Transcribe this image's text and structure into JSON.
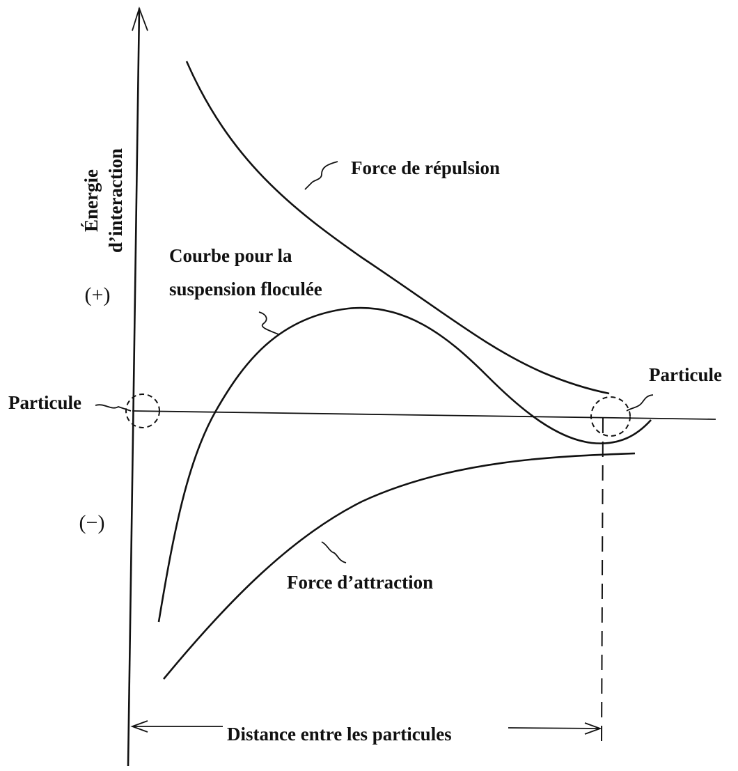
{
  "y_axis_label": [
    "Énergie",
    "d’interaction"
  ],
  "positive_sign": "(+)",
  "negative_sign": "(−)",
  "particle_left": "Particule",
  "particle_right": "Particule",
  "repulsion_label": "Force de répulsion",
  "flocculated_label": [
    "Courbe pour la",
    "suspension floculée"
  ],
  "attraction_label": "Force d’attraction",
  "distance_label": "Distance entre les particules"
}
